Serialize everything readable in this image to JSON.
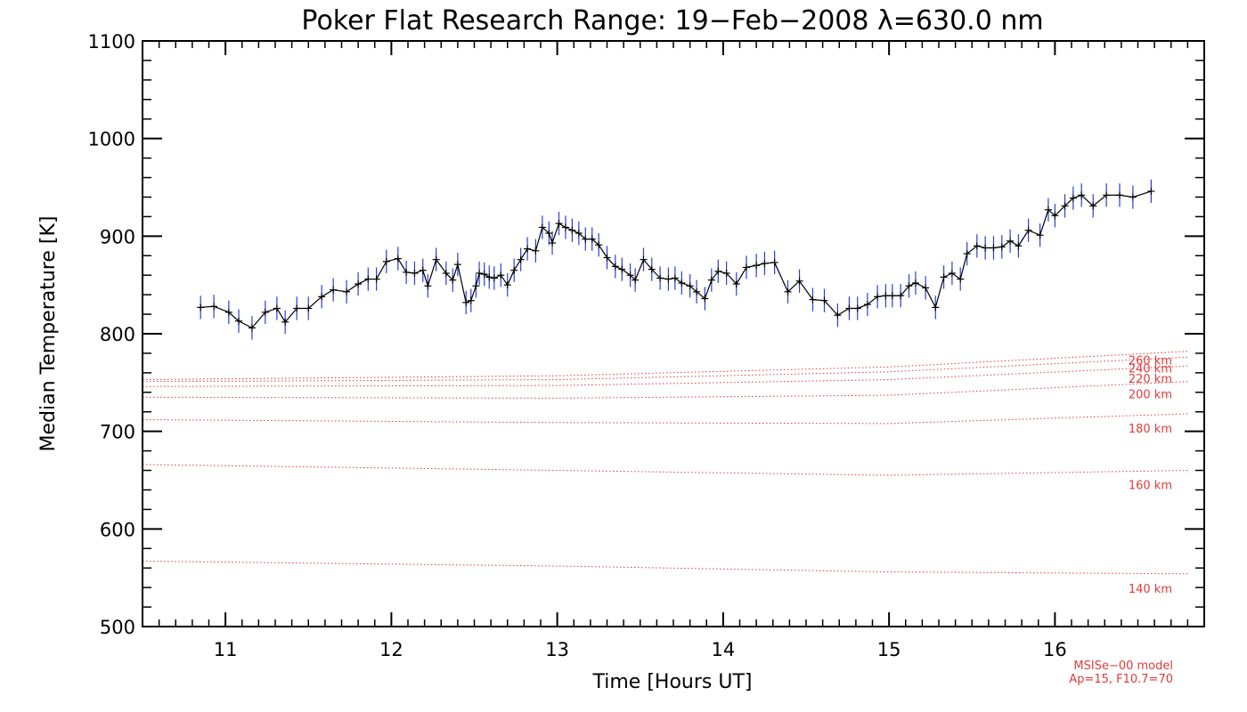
{
  "chart_data": {
    "type": "line",
    "title": "Poker Flat Research Range: 19−Feb−2008 λ=630.0 nm",
    "xlabel": "Time [Hours UT]",
    "ylabel": "Median Temperature [K]",
    "xlim": [
      10.5,
      16.9
    ],
    "ylim": [
      500,
      1100
    ],
    "xticks": [
      11,
      12,
      13,
      14,
      15,
      16
    ],
    "xtick_labels": [
      "11",
      "12",
      "13",
      "14",
      "15",
      "16"
    ],
    "yticks": [
      500,
      600,
      700,
      800,
      900,
      1000,
      1100
    ],
    "ytick_labels": [
      "500",
      "600",
      "700",
      "800",
      "900",
      "1000",
      "1100"
    ],
    "grid": false,
    "measured": {
      "color": "#000000",
      "error_color": "#2a3fd6",
      "points": [
        [
          10.85,
          827,
          12
        ],
        [
          10.93,
          828,
          12
        ],
        [
          11.02,
          822,
          12
        ],
        [
          11.08,
          813,
          12
        ],
        [
          11.16,
          806,
          12
        ],
        [
          11.24,
          822,
          12
        ],
        [
          11.31,
          826,
          12
        ],
        [
          11.36,
          812,
          12
        ],
        [
          11.43,
          826,
          12
        ],
        [
          11.5,
          826,
          12
        ],
        [
          11.58,
          838,
          12
        ],
        [
          11.65,
          845,
          12
        ],
        [
          11.73,
          843,
          12
        ],
        [
          11.8,
          851,
          12
        ],
        [
          11.86,
          856,
          12
        ],
        [
          11.91,
          856,
          12
        ],
        [
          11.97,
          874,
          12
        ],
        [
          12.04,
          877,
          12
        ],
        [
          12.09,
          863,
          12
        ],
        [
          12.14,
          862,
          12
        ],
        [
          12.19,
          865,
          12
        ],
        [
          12.22,
          849,
          12
        ],
        [
          12.27,
          876,
          12
        ],
        [
          12.33,
          862,
          12
        ],
        [
          12.37,
          855,
          12
        ],
        [
          12.4,
          871,
          12
        ],
        [
          12.45,
          832,
          12
        ],
        [
          12.48,
          834,
          12
        ],
        [
          12.51,
          849,
          12
        ],
        [
          12.53,
          862,
          12
        ],
        [
          12.56,
          861,
          12
        ],
        [
          12.59,
          858,
          12
        ],
        [
          12.62,
          857,
          12
        ],
        [
          12.66,
          860,
          12
        ],
        [
          12.7,
          850,
          12
        ],
        [
          12.74,
          865,
          12
        ],
        [
          12.78,
          876,
          12
        ],
        [
          12.82,
          887,
          12
        ],
        [
          12.87,
          885,
          12
        ],
        [
          12.91,
          909,
          12
        ],
        [
          12.95,
          903,
          12
        ],
        [
          12.97,
          893,
          12
        ],
        [
          13.01,
          913,
          12
        ],
        [
          13.05,
          909,
          12
        ],
        [
          13.09,
          906,
          12
        ],
        [
          13.13,
          903,
          12
        ],
        [
          13.17,
          897,
          12
        ],
        [
          13.21,
          897,
          12
        ],
        [
          13.25,
          891,
          12
        ],
        [
          13.3,
          878,
          12
        ],
        [
          13.35,
          869,
          12
        ],
        [
          13.39,
          866,
          12
        ],
        [
          13.44,
          860,
          12
        ],
        [
          13.47,
          855,
          12
        ],
        [
          13.52,
          876,
          12
        ],
        [
          13.57,
          866,
          12
        ],
        [
          13.62,
          857,
          12
        ],
        [
          13.67,
          856,
          12
        ],
        [
          13.71,
          857,
          12
        ],
        [
          13.75,
          852,
          12
        ],
        [
          13.8,
          849,
          12
        ],
        [
          13.84,
          843,
          12
        ],
        [
          13.89,
          836,
          12
        ],
        [
          13.93,
          855,
          12
        ],
        [
          13.97,
          864,
          12
        ],
        [
          14.02,
          862,
          12
        ],
        [
          14.08,
          851,
          12
        ],
        [
          14.14,
          868,
          12
        ],
        [
          14.2,
          870,
          12
        ],
        [
          14.25,
          872,
          12
        ],
        [
          14.31,
          873,
          12
        ],
        [
          14.39,
          843,
          12
        ],
        [
          14.46,
          854,
          12
        ],
        [
          14.54,
          835,
          12
        ],
        [
          14.61,
          834,
          12
        ],
        [
          14.69,
          819,
          12
        ],
        [
          14.76,
          826,
          12
        ],
        [
          14.81,
          826,
          12
        ],
        [
          14.87,
          830,
          12
        ],
        [
          14.93,
          838,
          12
        ],
        [
          14.98,
          839,
          12
        ],
        [
          15.02,
          839,
          12
        ],
        [
          15.07,
          839,
          12
        ],
        [
          15.12,
          849,
          12
        ],
        [
          15.16,
          852,
          12
        ],
        [
          15.22,
          847,
          12
        ],
        [
          15.28,
          827,
          12
        ],
        [
          15.33,
          858,
          12
        ],
        [
          15.38,
          862,
          12
        ],
        [
          15.43,
          856,
          12
        ],
        [
          15.47,
          882,
          12
        ],
        [
          15.53,
          890,
          12
        ],
        [
          15.58,
          888,
          12
        ],
        [
          15.63,
          888,
          12
        ],
        [
          15.68,
          889,
          12
        ],
        [
          15.73,
          895,
          12
        ],
        [
          15.78,
          890,
          12
        ],
        [
          15.84,
          906,
          12
        ],
        [
          15.91,
          901,
          12
        ],
        [
          15.96,
          927,
          12
        ],
        [
          16.0,
          921,
          12
        ],
        [
          16.06,
          931,
          12
        ],
        [
          16.11,
          939,
          12
        ],
        [
          16.16,
          942,
          12
        ],
        [
          16.23,
          931,
          12
        ],
        [
          16.31,
          942,
          12
        ],
        [
          16.39,
          942,
          12
        ],
        [
          16.47,
          940,
          12
        ],
        [
          16.58,
          946,
          12
        ]
      ]
    },
    "model_color": "#e23a3a",
    "model_lines": [
      {
        "altitude": "140 km",
        "label": "140 km",
        "values": [
          [
            10.5,
            567
          ],
          [
            13.0,
            562
          ],
          [
            15.0,
            556
          ],
          [
            16.8,
            554
          ]
        ]
      },
      {
        "altitude": "160 km",
        "label": "160 km",
        "values": [
          [
            10.5,
            666
          ],
          [
            13.0,
            660
          ],
          [
            15.0,
            655
          ],
          [
            16.8,
            660
          ]
        ]
      },
      {
        "altitude": "180 km",
        "label": "180 km",
        "values": [
          [
            10.5,
            712
          ],
          [
            13.0,
            709
          ],
          [
            15.0,
            708
          ],
          [
            16.8,
            718
          ]
        ]
      },
      {
        "altitude": "200 km",
        "label": "200 km",
        "values": [
          [
            10.5,
            735
          ],
          [
            13.0,
            734
          ],
          [
            15.0,
            737
          ],
          [
            16.8,
            751
          ]
        ]
      },
      {
        "altitude": "220 km",
        "label": "220 km",
        "values": [
          [
            10.5,
            746
          ],
          [
            13.0,
            747
          ],
          [
            15.0,
            753
          ],
          [
            16.8,
            767
          ]
        ]
      },
      {
        "altitude": "240 km",
        "label": "240 km",
        "values": [
          [
            10.5,
            751
          ],
          [
            13.0,
            753
          ],
          [
            15.0,
            761
          ],
          [
            16.8,
            776
          ]
        ]
      },
      {
        "altitude": "260 km",
        "label": "260 km",
        "values": [
          [
            10.5,
            753
          ],
          [
            13.0,
            757
          ],
          [
            15.0,
            766
          ],
          [
            16.8,
            782
          ]
        ]
      }
    ],
    "footnote": [
      "MSISe−00 model",
      "Ap=15, F10.7=70"
    ]
  }
}
